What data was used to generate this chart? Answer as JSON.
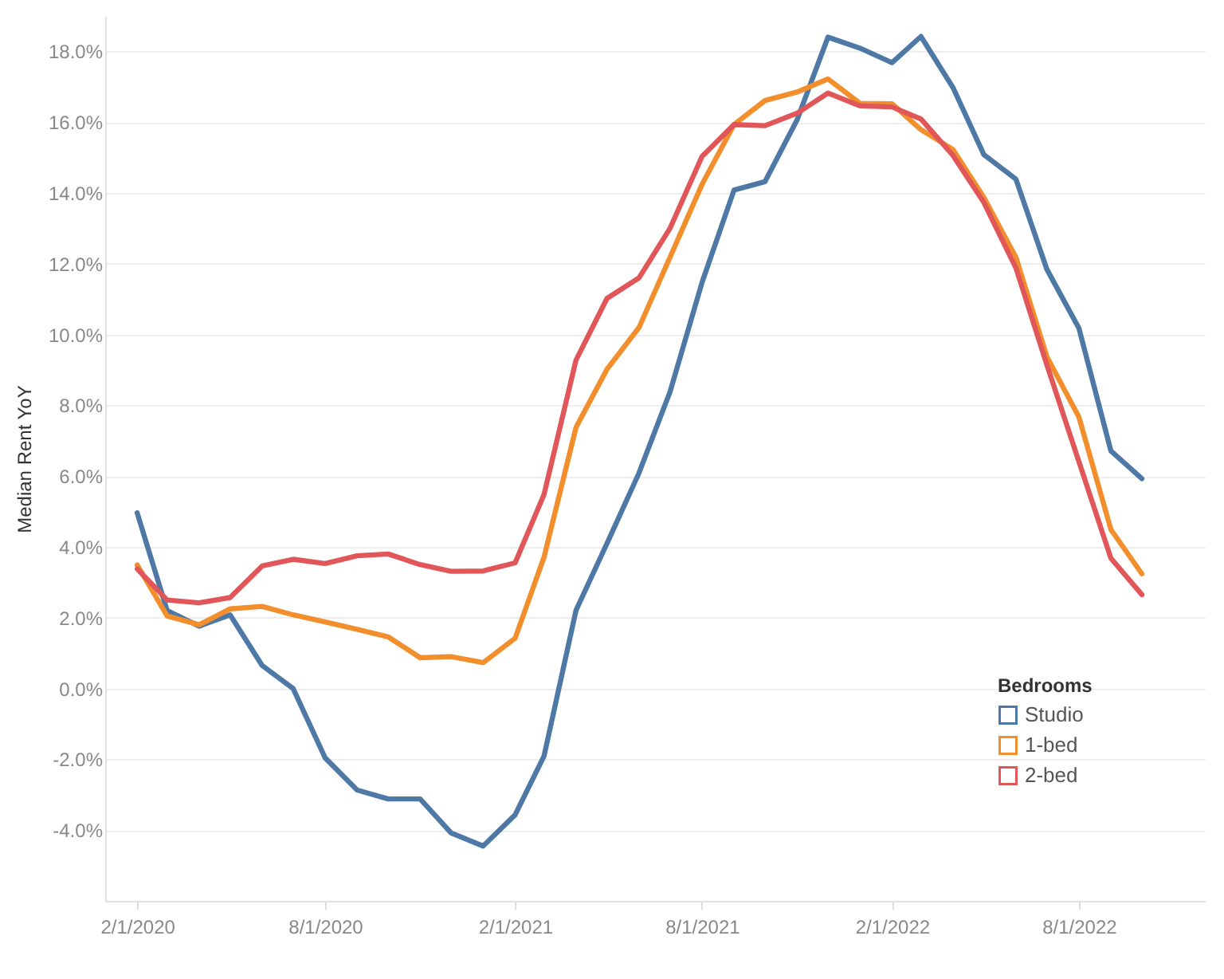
{
  "chart_data": {
    "type": "line",
    "ylabel": "Median Rent YoY",
    "legend_title": "Bedrooms",
    "x": [
      "2020-02",
      "2020-03",
      "2020-04",
      "2020-05",
      "2020-06",
      "2020-07",
      "2020-08",
      "2020-09",
      "2020-10",
      "2020-11",
      "2020-12",
      "2021-01",
      "2021-02",
      "2021-03",
      "2021-04",
      "2021-05",
      "2021-06",
      "2021-07",
      "2021-08",
      "2021-09",
      "2021-10",
      "2021-11",
      "2021-12",
      "2022-01",
      "2022-02",
      "2022-03",
      "2022-04",
      "2022-05",
      "2022-06",
      "2022-07",
      "2022-08",
      "2022-09",
      "2022-10"
    ],
    "series": [
      {
        "name": "Studio",
        "color": "#4e79a7",
        "values": [
          4.96,
          2.2,
          1.76,
          2.08,
          0.65,
          0.0,
          -1.96,
          -2.87,
          -3.12,
          -3.12,
          -4.08,
          -4.45,
          -3.57,
          -1.91,
          2.21,
          4.1,
          6.09,
          8.38,
          11.47,
          14.08,
          14.32,
          16.06,
          18.4,
          18.09,
          17.68,
          18.42,
          16.98,
          15.08,
          14.39,
          11.84,
          10.18,
          6.71,
          5.93
        ]
      },
      {
        "name": "1-bed",
        "color": "#f28e2b",
        "values": [
          3.49,
          2.05,
          1.8,
          2.25,
          2.32,
          2.08,
          1.88,
          1.67,
          1.46,
          0.87,
          0.9,
          0.73,
          1.42,
          3.71,
          7.38,
          9.02,
          10.2,
          12.18,
          14.24,
          15.93,
          16.61,
          16.85,
          17.22,
          16.53,
          16.52,
          15.79,
          15.23,
          13.87,
          12.18,
          9.37,
          7.67,
          4.49,
          3.24
        ]
      },
      {
        "name": "2-bed",
        "color": "#e15759",
        "values": [
          3.38,
          2.5,
          2.42,
          2.57,
          3.46,
          3.65,
          3.53,
          3.75,
          3.8,
          3.5,
          3.31,
          3.32,
          3.55,
          5.48,
          9.28,
          11.02,
          11.6,
          13.0,
          15.03,
          15.93,
          15.9,
          16.25,
          16.82,
          16.46,
          16.43,
          16.09,
          15.06,
          13.73,
          11.88,
          9.14,
          6.41,
          3.68,
          2.65
        ]
      }
    ],
    "xlim": [
      "2020-01-01",
      "2022-12-01"
    ],
    "xticks": [
      {
        "value": "2020-02-01",
        "label": "2/1/2020"
      },
      {
        "value": "2020-08-01",
        "label": "8/1/2020"
      },
      {
        "value": "2021-02-01",
        "label": "2/1/2021"
      },
      {
        "value": "2021-08-01",
        "label": "8/1/2021"
      },
      {
        "value": "2022-02-01",
        "label": "2/1/2022"
      },
      {
        "value": "2022-08-01",
        "label": "8/1/2022"
      }
    ],
    "ylim": [
      -6,
      19
    ],
    "yticks": [
      {
        "value": -4,
        "label": "-4.0%"
      },
      {
        "value": -2,
        "label": "-2.0%"
      },
      {
        "value": 0,
        "label": "0.0%"
      },
      {
        "value": 2,
        "label": "2.0%"
      },
      {
        "value": 4,
        "label": "4.0%"
      },
      {
        "value": 6,
        "label": "6.0%"
      },
      {
        "value": 8,
        "label": "8.0%"
      },
      {
        "value": 10,
        "label": "10.0%"
      },
      {
        "value": 12,
        "label": "12.0%"
      },
      {
        "value": 14,
        "label": "14.0%"
      },
      {
        "value": 16,
        "label": "16.0%"
      },
      {
        "value": 18,
        "label": "18.0%"
      }
    ],
    "grid": "y",
    "legend": "bottom right",
    "marker": "none",
    "line_style": "solid"
  }
}
